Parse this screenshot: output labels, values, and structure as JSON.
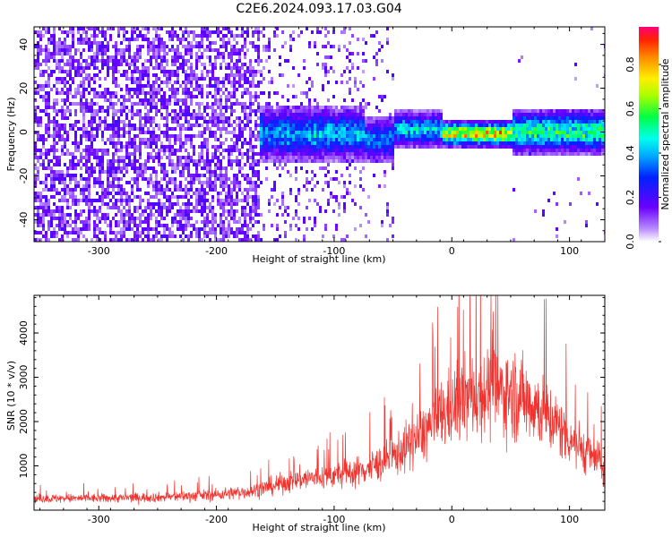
{
  "title": "C2E6.2024.093.17.03.G04",
  "chart_data": [
    {
      "type": "heatmap",
      "xlabel": "Height of straight line (km)",
      "ylabel": "Frequency (Hz)",
      "xlim": [
        -355,
        130
      ],
      "ylim": [
        -50,
        48
      ],
      "x_ticks": [
        -300,
        -200,
        -100,
        0,
        100
      ],
      "y_ticks": [
        -40,
        -20,
        0,
        20,
        40
      ],
      "colorbar": {
        "label": "Normalized spectral amplitude",
        "range": [
          0.0,
          0.97
        ],
        "ticks": [
          0.0,
          0.2,
          0.4,
          0.6,
          0.8
        ]
      },
      "description_points": [
        {
          "x": -300,
          "center_freq": 0,
          "amplitude": 0.15
        },
        {
          "x": -160,
          "center_freq": 1,
          "amplitude": 0.3
        },
        {
          "x": -120,
          "center_freq": 3,
          "amplitude": 0.45
        },
        {
          "x": -60,
          "center_freq": -3,
          "amplitude": 0.45
        },
        {
          "x": -40,
          "center_freq": 2,
          "amplitude": 0.5
        },
        {
          "x": 0,
          "center_freq": 0,
          "amplitude": 0.8
        },
        {
          "x": 30,
          "center_freq": 0,
          "amplitude": 0.85
        },
        {
          "x": 80,
          "center_freq": 1,
          "amplitude": 0.6
        },
        {
          "x": 120,
          "center_freq": 1,
          "amplitude": 0.5
        }
      ],
      "grid": false
    },
    {
      "type": "line",
      "xlabel": "Height of straight line (km)",
      "ylabel": "SNR (10 * v/v)",
      "xlim": [
        -355,
        130
      ],
      "ylim": [
        0,
        4850
      ],
      "x_ticks": [
        -300,
        -200,
        -100,
        0,
        100
      ],
      "y_ticks": [
        1000,
        2000,
        3000,
        4000
      ],
      "series_color": "#f0332e",
      "envelope": {
        "x": [
          -355,
          -300,
          -250,
          -200,
          -170,
          -150,
          -130,
          -110,
          -90,
          -70,
          -50,
          -30,
          -10,
          10,
          30,
          50,
          70,
          90,
          110,
          130
        ],
        "y": [
          260,
          270,
          290,
          350,
          430,
          560,
          700,
          750,
          820,
          950,
          1200,
          1600,
          2100,
          2500,
          2700,
          2650,
          2400,
          1900,
          1400,
          1000
        ]
      },
      "grid": false
    }
  ]
}
